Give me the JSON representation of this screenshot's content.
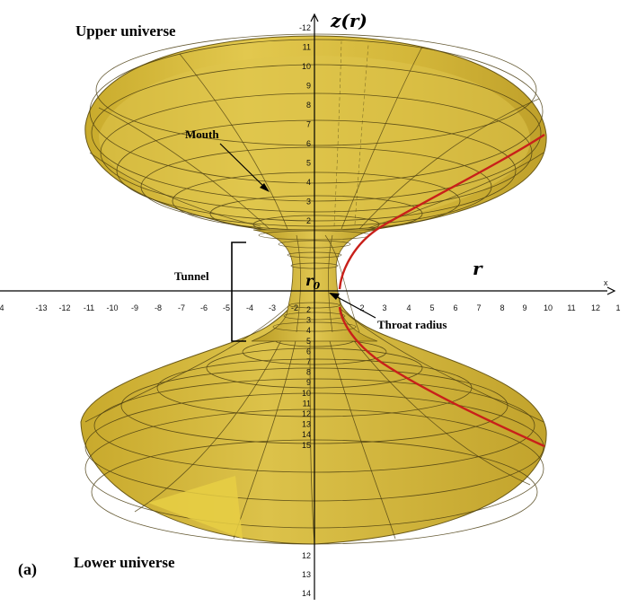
{
  "labels": {
    "upper_universe": "Upper universe",
    "lower_universe": "Lower universe",
    "mouth": "Mouth",
    "tunnel": "Tunnel",
    "throat_radius": "Throat radius",
    "panel": "(a)",
    "z_axis": "z(r)",
    "r_axis": "r",
    "r0": "r",
    "r0_sub": "0",
    "x_axis_letter": "x"
  },
  "x_ticks": [
    "4",
    "-13",
    "-12",
    "-11",
    "-10",
    "-9",
    "-8",
    "-7",
    "-6",
    "-5",
    "-4",
    "-3",
    "-2",
    "2",
    "3",
    "4",
    "5",
    "6",
    "7",
    "8",
    "9",
    "10",
    "11",
    "12",
    "1"
  ],
  "z_ticks_top": [
    "-12",
    "11",
    "10",
    "9",
    "8",
    "7",
    "6",
    "5",
    "4",
    "3",
    "2"
  ],
  "z_ticks_inner": [
    "2",
    "3",
    "4",
    "5",
    "6",
    "7",
    "8",
    "9",
    "10",
    "11",
    "12",
    "13",
    "14",
    "15"
  ],
  "z_ticks_bottom": [
    "12",
    "13",
    "14"
  ],
  "colors": {
    "surface": "#d6b93a",
    "surface_light": "#e6cd55",
    "surface_dark": "#b89a22",
    "mesh": "#4a3d10",
    "profile": "#c8201a",
    "axis": "#000000"
  }
}
